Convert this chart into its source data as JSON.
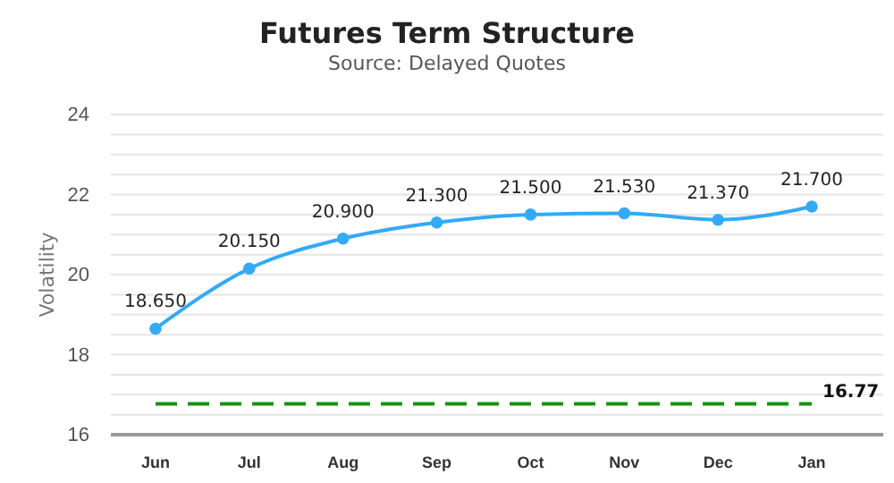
{
  "chart_data": {
    "type": "line",
    "title": "Futures Term Structure",
    "subtitle": "Source: Delayed Quotes",
    "ylabel": "Volatility",
    "categories": [
      "Jun",
      "Jul",
      "Aug",
      "Sep",
      "Oct",
      "Nov",
      "Dec",
      "Jan"
    ],
    "series": [
      {
        "color": "#33aaf5",
        "values": [
          18.65,
          20.15,
          20.9,
          21.3,
          21.5,
          21.53,
          21.37,
          21.7
        ],
        "value_labels": [
          "18.650",
          "20.150",
          "20.900",
          "21.300",
          "21.500",
          "21.530",
          "21.370",
          "21.700"
        ]
      }
    ],
    "ylim": [
      16,
      24
    ],
    "yticks": [
      16,
      {
        "value": 16.5,
        "label": null
      },
      {
        "value": 17,
        "label": null
      },
      {
        "value": 17.5,
        "label": null
      },
      18,
      {
        "value": 18.5,
        "label": null
      },
      {
        "value": 19,
        "label": null
      },
      {
        "value": 19.5,
        "label": null
      },
      20,
      {
        "value": 20.5,
        "label": null
      },
      {
        "value": 21,
        "label": null
      },
      {
        "value": 21.5,
        "label": null
      },
      22,
      {
        "value": 22.5,
        "label": null
      },
      {
        "value": 23,
        "label": null
      },
      {
        "value": 23.5,
        "label": null
      },
      24
    ],
    "ref_lines": [
      {
        "axis": "y",
        "value": 16.77,
        "label": "16.77",
        "color": "#149414",
        "line_style": "dashed"
      }
    ],
    "grid": "y",
    "marker": "circle",
    "line_style": "solid"
  }
}
